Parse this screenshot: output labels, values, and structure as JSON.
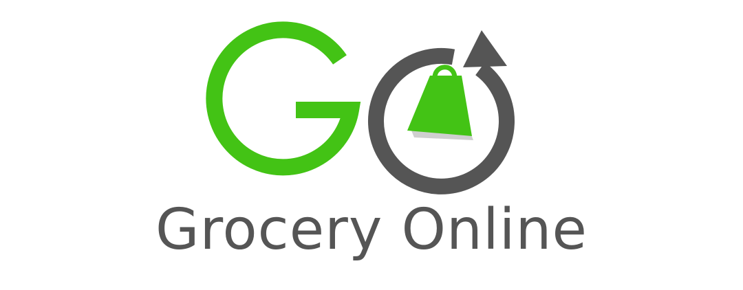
{
  "logo": {
    "monogram_letters": "GO",
    "wordmark": "Grocery Online",
    "icons": [
      "shopping-bag-icon",
      "refresh-arrow-icon"
    ],
    "colors": {
      "green": "#43c315",
      "gray": "#555555",
      "shadow": "#cfcfcf",
      "background": "#ffffff"
    }
  }
}
